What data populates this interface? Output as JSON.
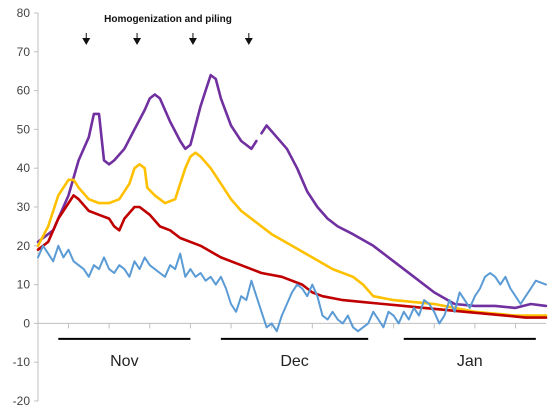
{
  "chart_data": {
    "type": "line",
    "title": "",
    "xlabel": "",
    "ylabel": "",
    "ylim": [
      -20,
      80
    ],
    "yticks": [
      -20,
      -10,
      0,
      10,
      20,
      30,
      40,
      50,
      60,
      70,
      80
    ],
    "x_unit": "day index from start of record",
    "xlim": [
      0,
      100
    ],
    "grid": false,
    "legend": "none",
    "months": [
      {
        "label": "Nov",
        "start": 4,
        "end": 30
      },
      {
        "label": "Dec",
        "start": 36,
        "end": 65
      },
      {
        "label": "Jan",
        "start": 72,
        "end": 98
      }
    ],
    "annotation": {
      "text": "Homogenization and piling",
      "arrow_x": [
        9.5,
        19.5,
        30.5,
        41.5
      ]
    },
    "series": [
      {
        "color": "#7030A0",
        "segments": [
          [
            [
              0,
              21
            ],
            [
              3,
              24
            ],
            [
              6,
              33
            ],
            [
              8,
              42
            ],
            [
              10,
              48
            ],
            [
              11,
              54
            ],
            [
              12,
              54
            ],
            [
              13,
              42
            ],
            [
              14,
              41
            ],
            [
              15,
              42
            ],
            [
              17,
              45
            ],
            [
              19,
              50
            ],
            [
              21,
              55
            ],
            [
              22,
              58
            ],
            [
              23,
              59
            ],
            [
              24,
              58
            ],
            [
              26,
              52
            ],
            [
              28,
              47
            ],
            [
              29,
              45
            ],
            [
              30,
              46
            ],
            [
              31,
              51
            ],
            [
              32,
              56
            ],
            [
              33,
              60
            ],
            [
              34,
              64
            ],
            [
              35,
              63
            ],
            [
              36,
              58
            ],
            [
              38,
              51
            ],
            [
              40,
              47
            ],
            [
              41,
              46
            ],
            [
              42,
              45
            ],
            [
              43,
              47
            ]
          ],
          [
            [
              44,
              49
            ],
            [
              45,
              51
            ],
            [
              47,
              48
            ],
            [
              49,
              45
            ],
            [
              51,
              40
            ],
            [
              53,
              34
            ],
            [
              55,
              30
            ],
            [
              57,
              27
            ],
            [
              59,
              25
            ],
            [
              62,
              23
            ],
            [
              66,
              20
            ],
            [
              70,
              16
            ],
            [
              74,
              12
            ],
            [
              78,
              8
            ],
            [
              82,
              5
            ],
            [
              86,
              4.5
            ],
            [
              90,
              4.5
            ],
            [
              94,
              4
            ],
            [
              97,
              5
            ],
            [
              100,
              4.5
            ]
          ]
        ]
      },
      {
        "color": "#FFC000",
        "segments": [
          [
            [
              0,
              20
            ],
            [
              2,
              25
            ],
            [
              4,
              33
            ],
            [
              6,
              37
            ],
            [
              7,
              37
            ],
            [
              8,
              35
            ],
            [
              10,
              32
            ],
            [
              12,
              31
            ],
            [
              14,
              31
            ],
            [
              16,
              32
            ],
            [
              18,
              36
            ],
            [
              19,
              40
            ],
            [
              20,
              41
            ],
            [
              21,
              40
            ],
            [
              21.5,
              35
            ],
            [
              23,
              33
            ],
            [
              25,
              31
            ],
            [
              27,
              32
            ],
            [
              28,
              36
            ],
            [
              29,
              40
            ],
            [
              30,
              43
            ],
            [
              31,
              44
            ],
            [
              32,
              43
            ],
            [
              34,
              40
            ],
            [
              36,
              36
            ],
            [
              38,
              32
            ],
            [
              40,
              29
            ],
            [
              43,
              26
            ],
            [
              46,
              23
            ],
            [
              50,
              20
            ],
            [
              54,
              17
            ],
            [
              58,
              14
            ],
            [
              62,
              12
            ],
            [
              64,
              10
            ],
            [
              66,
              7
            ],
            [
              70,
              6
            ],
            [
              74,
              5.5
            ],
            [
              78,
              5
            ],
            [
              82,
              4
            ],
            [
              86,
              3
            ],
            [
              90,
              2.5
            ],
            [
              94,
              2
            ],
            [
              100,
              2
            ]
          ]
        ]
      },
      {
        "color": "#C00000",
        "segments": [
          [
            [
              0,
              19
            ],
            [
              2,
              21
            ],
            [
              4,
              27
            ],
            [
              6,
              31
            ],
            [
              7,
              33
            ],
            [
              8,
              32
            ],
            [
              10,
              29
            ],
            [
              12,
              28
            ],
            [
              14,
              27
            ],
            [
              15,
              25
            ],
            [
              16,
              24
            ],
            [
              17,
              27
            ],
            [
              19,
              30
            ],
            [
              20,
              30
            ],
            [
              22,
              28
            ],
            [
              24,
              25
            ],
            [
              26,
              24
            ],
            [
              28,
              22
            ],
            [
              32,
              20
            ],
            [
              36,
              17
            ],
            [
              40,
              15
            ],
            [
              44,
              13
            ],
            [
              48,
              12
            ],
            [
              52,
              10
            ],
            [
              54,
              8
            ],
            [
              56,
              7
            ],
            [
              60,
              6
            ],
            [
              64,
              5.5
            ],
            [
              68,
              5
            ],
            [
              72,
              4.5
            ],
            [
              76,
              4
            ],
            [
              80,
              3.5
            ],
            [
              84,
              3
            ],
            [
              88,
              2.5
            ],
            [
              92,
              2
            ],
            [
              96,
              1.5
            ],
            [
              100,
              1.5
            ]
          ]
        ]
      },
      {
        "color": "#5B9BD5",
        "segments": [
          [
            [
              0,
              17
            ],
            [
              1,
              20
            ],
            [
              2,
              18
            ],
            [
              3,
              16
            ],
            [
              4,
              20
            ],
            [
              5,
              17
            ],
            [
              6,
              19
            ],
            [
              7,
              16
            ],
            [
              8,
              15
            ],
            [
              9,
              14
            ],
            [
              10,
              12
            ],
            [
              11,
              15
            ],
            [
              12,
              14
            ],
            [
              13,
              17
            ],
            [
              14,
              14
            ],
            [
              15,
              13
            ],
            [
              16,
              15
            ],
            [
              17,
              14
            ],
            [
              18,
              12
            ],
            [
              19,
              16
            ],
            [
              20,
              14
            ],
            [
              21,
              17
            ],
            [
              22,
              15
            ],
            [
              23,
              14
            ],
            [
              24,
              13
            ],
            [
              25,
              12
            ],
            [
              26,
              15
            ],
            [
              27,
              14
            ],
            [
              28,
              18
            ],
            [
              29,
              12
            ],
            [
              30,
              14
            ],
            [
              31,
              12
            ],
            [
              32,
              13
            ],
            [
              33,
              11
            ],
            [
              34,
              12
            ],
            [
              35,
              10
            ],
            [
              36,
              12
            ],
            [
              37,
              9
            ],
            [
              38,
              5
            ],
            [
              39,
              3
            ],
            [
              40,
              7
            ],
            [
              41,
              6
            ],
            [
              42,
              11
            ],
            [
              43,
              7
            ],
            [
              44,
              3
            ],
            [
              45,
              -1
            ],
            [
              46,
              0
            ],
            [
              47,
              -2
            ],
            [
              48,
              2
            ],
            [
              49,
              5
            ],
            [
              50,
              8
            ],
            [
              51,
              10
            ],
            [
              52,
              9
            ],
            [
              53,
              7
            ],
            [
              54,
              10
            ],
            [
              55,
              7
            ],
            [
              56,
              2
            ],
            [
              57,
              1
            ],
            [
              58,
              3
            ],
            [
              59,
              1
            ],
            [
              60,
              0
            ],
            [
              61,
              2
            ],
            [
              62,
              -1
            ],
            [
              63,
              -2
            ],
            [
              64,
              -1
            ],
            [
              65,
              0
            ],
            [
              66,
              3
            ],
            [
              67,
              1
            ],
            [
              68,
              -1
            ],
            [
              69,
              3
            ],
            [
              70,
              2
            ],
            [
              71,
              0
            ],
            [
              72,
              3
            ],
            [
              73,
              1
            ],
            [
              74,
              4
            ],
            [
              75,
              2
            ],
            [
              76,
              6
            ],
            [
              77,
              5
            ],
            [
              78,
              3
            ],
            [
              79,
              0
            ],
            [
              80,
              2
            ],
            [
              81,
              6
            ],
            [
              82,
              3
            ],
            [
              83,
              8
            ],
            [
              84,
              6
            ],
            [
              85,
              4
            ],
            [
              86,
              7
            ],
            [
              87,
              9
            ],
            [
              88,
              12
            ],
            [
              89,
              13
            ],
            [
              90,
              12
            ],
            [
              91,
              10
            ],
            [
              92,
              12
            ],
            [
              93,
              9
            ],
            [
              94,
              7
            ],
            [
              95,
              5
            ],
            [
              96,
              7
            ],
            [
              97,
              9
            ],
            [
              98,
              11
            ],
            [
              100,
              10
            ]
          ]
        ]
      }
    ]
  }
}
